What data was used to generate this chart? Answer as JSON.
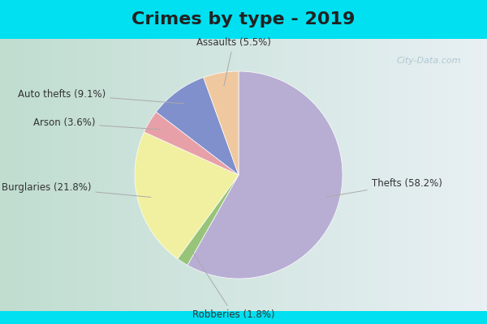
{
  "title": "Crimes by type - 2019",
  "title_fontsize": 16,
  "title_fontweight": "bold",
  "slices": [
    {
      "label": "Thefts",
      "pct": 58.2,
      "color": "#b8aed4"
    },
    {
      "label": "Robberies",
      "pct": 1.8,
      "color": "#98c47a"
    },
    {
      "label": "Burglaries",
      "pct": 21.8,
      "color": "#f0f0a0"
    },
    {
      "label": "Arson",
      "pct": 3.6,
      "color": "#e8a0a8"
    },
    {
      "label": "Auto thefts",
      "pct": 9.1,
      "color": "#8090cc"
    },
    {
      "label": "Assaults",
      "pct": 5.5,
      "color": "#f0c8a0"
    }
  ],
  "background_outer": "#00e0f0",
  "background_inner_left": "#c0ddd0",
  "background_inner_right": "#e8f0f4",
  "watermark": "City-Data.com",
  "label_fontsize": 8.5,
  "label_color": "#333333",
  "title_color": "#222222"
}
